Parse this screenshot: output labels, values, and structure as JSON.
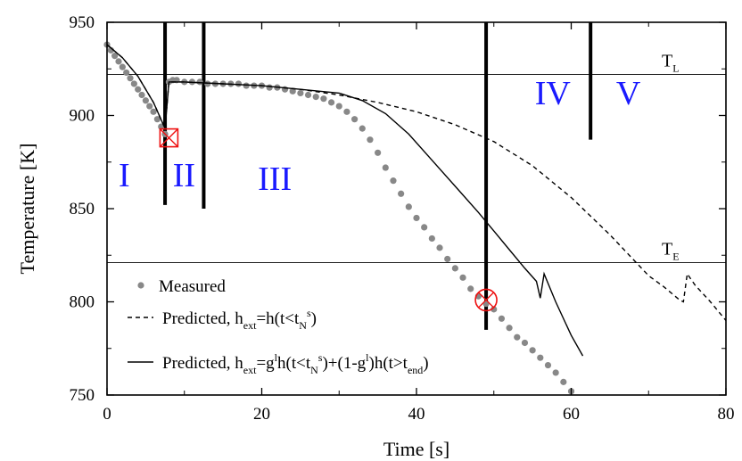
{
  "chart_data": {
    "type": "line",
    "xlabel": "Time [s]",
    "ylabel": "Temperature [K]",
    "xlim": [
      0,
      80
    ],
    "ylim": [
      750,
      950
    ],
    "x_ticks": [
      0,
      20,
      40,
      60,
      80
    ],
    "y_ticks": [
      750,
      800,
      850,
      900,
      950
    ],
    "x_tick_labels": [
      "0",
      "20",
      "40",
      "60",
      "80"
    ],
    "y_tick_labels": [
      "750",
      "800",
      "850",
      "900",
      "950"
    ],
    "reference_lines": [
      {
        "label_main": "T",
        "label_sub": "L",
        "y": 922
      },
      {
        "label_main": "T",
        "label_sub": "E",
        "y": 821
      }
    ],
    "region_dividers": [
      {
        "x": 7.5,
        "y_from": 852,
        "y_to": 950
      },
      {
        "x": 12.5,
        "y_from": 850,
        "y_to": 950
      },
      {
        "x": 49,
        "y_from": 785,
        "y_to": 950
      },
      {
        "x": 62.5,
        "y_from": 887,
        "y_to": 950
      }
    ],
    "regions": [
      {
        "label": "I",
        "x": 1.5,
        "y": 862
      },
      {
        "label": "II",
        "x": 8.5,
        "y": 862
      },
      {
        "label": "III",
        "x": 19.5,
        "y": 860
      },
      {
        "label": "IV",
        "x": 55.3,
        "y": 906
      },
      {
        "label": "V",
        "x": 65.8,
        "y": 906
      }
    ],
    "markers": [
      {
        "shape": "square-x",
        "x": 8,
        "y": 888,
        "color": "#ee1111"
      },
      {
        "shape": "circle-x",
        "x": 49,
        "y": 801,
        "color": "#ee1111"
      }
    ],
    "series": [
      {
        "name": "Measured",
        "style": "dots",
        "color": "#888888",
        "x": [
          0,
          0.5,
          1,
          1.5,
          2,
          2.5,
          3,
          3.5,
          4,
          4.5,
          5,
          5.5,
          6,
          6.5,
          7,
          7.5,
          8,
          8.5,
          9,
          10,
          11,
          12,
          13,
          14,
          15,
          16,
          17,
          18,
          19,
          20,
          21,
          22,
          23,
          24,
          25,
          26,
          27,
          28,
          29,
          30,
          31,
          32,
          33,
          34,
          35,
          36,
          37,
          38,
          39,
          40,
          41,
          42,
          43,
          44,
          45,
          46,
          47,
          48,
          49,
          50,
          51,
          52,
          53,
          54,
          55,
          56,
          57,
          58,
          59,
          60
        ],
        "y": [
          938,
          935,
          932,
          929,
          926,
          923,
          920,
          917,
          914,
          911,
          908,
          905,
          902,
          898,
          894,
          890,
          918,
          919,
          919,
          918,
          918,
          918,
          917,
          917,
          917,
          917,
          917,
          916,
          916,
          916,
          915,
          915,
          914,
          913,
          912,
          911,
          910,
          909,
          907,
          905,
          902,
          898,
          893,
          887,
          880,
          872,
          865,
          858,
          851,
          845,
          840,
          834,
          829,
          823,
          818,
          813,
          807,
          803,
          799,
          796,
          791,
          786,
          781,
          778,
          774,
          770,
          766,
          762,
          757,
          752
        ]
      },
      {
        "name": "Predicted, h_ext=h(t<t_N^s)",
        "legend_parts": [
          "Predicted, h",
          "ext",
          "=h(t<t",
          "N",
          "s",
          ")"
        ],
        "style": "dashed",
        "color": "#000000",
        "x": [
          0,
          2,
          4,
          6,
          7.5,
          8,
          10,
          15,
          20,
          25,
          30,
          35,
          40,
          45,
          50,
          55,
          60,
          65,
          70,
          72,
          74,
          74.5,
          75,
          76,
          78,
          80
        ],
        "y": [
          938,
          931,
          921,
          907,
          893,
          918,
          918,
          917,
          916,
          914,
          911,
          907,
          902,
          895,
          886,
          873,
          856,
          836,
          814,
          808,
          801,
          800,
          815,
          809,
          800,
          790
        ]
      },
      {
        "name": "Predicted, h_ext=g^l h(t<t_N^s)+(1-g^l)h(t>t_end)",
        "legend_parts": [
          "Predicted, h",
          "ext",
          "=g",
          "l",
          "h(t<t",
          "N",
          "s",
          ")+(1-g",
          "l",
          ")h(t>t",
          "end",
          ")"
        ],
        "style": "solid",
        "color": "#000000",
        "x": [
          0,
          2,
          4,
          6,
          7.5,
          8,
          10,
          15,
          20,
          25,
          30,
          33,
          36,
          39,
          42,
          45,
          48,
          50,
          52,
          54,
          55.5,
          56,
          56.5,
          58,
          60,
          61.5
        ],
        "y": [
          938,
          931,
          921,
          907,
          893,
          918,
          918,
          917,
          916,
          914,
          912,
          908,
          901,
          890,
          876,
          862,
          848,
          838,
          828,
          818,
          811,
          802,
          815,
          800,
          782,
          771
        ]
      }
    ]
  }
}
